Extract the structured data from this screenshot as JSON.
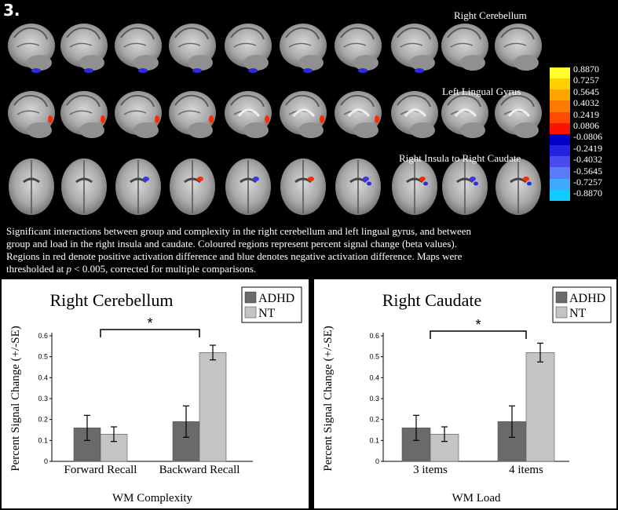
{
  "figure_label": "3.",
  "brain_rows": [
    {
      "label": "Right Cerebellum",
      "view": "sagittal",
      "blob": "blue"
    },
    {
      "label": "Left Lingual Gyrus",
      "view": "sagittal",
      "blob": "red"
    },
    {
      "label": "Right Insula to Right Caudate",
      "view": "axial",
      "blob": "red-blue"
    }
  ],
  "colorbar": {
    "labels": [
      "0.8870",
      "0.7257",
      "0.5645",
      "0.4032",
      "0.2419",
      "0.0806",
      "-0.0806",
      "-0.2419",
      "-0.4032",
      "-0.5645",
      "-0.7257",
      "-0.8870"
    ],
    "colors": [
      "#ffff30",
      "#ffd200",
      "#ffa500",
      "#ff7a00",
      "#ff4a00",
      "#ff1100",
      "#0000c8",
      "#2323e0",
      "#4a4aee",
      "#5a7cf8",
      "#40aaff",
      "#10ccff"
    ]
  },
  "caption": {
    "lines": [
      "Significant interactions between group and complexity in the right cerebellum and left lingual gyrus, and between",
      "group and load in the right insula and caudate. Coloured regions represent percent signal change (beta values).",
      "Regions in red denote positive activation difference and blue denotes negative activation difference. Maps were"
    ],
    "last_pre": "thresholded at ",
    "last_italic": "p",
    "last_post": " < 0.005, corrected for multiple comparisons."
  },
  "chart_data": [
    {
      "type": "bar",
      "title": "Right Cerebellum",
      "xlabel": "WM Complexity",
      "ylabel": "Percent Signal Change (+/-SE)",
      "categories": [
        "Forward Recall",
        "Backward Recall"
      ],
      "series": [
        {
          "name": "ADHD",
          "values": [
            0.16,
            0.19
          ],
          "se": [
            0.06,
            0.075
          ],
          "color": "#6a6a6a"
        },
        {
          "name": "NT",
          "values": [
            0.13,
            0.52
          ],
          "se": [
            0.035,
            0.035
          ],
          "color": "#c4c4c4"
        }
      ],
      "ylim": [
        0,
        0.6
      ],
      "yticks": [
        "0",
        "0.1",
        "0.2",
        "0.3",
        "0.4",
        "0.5",
        "0.6"
      ],
      "significance": "*",
      "legend": "top-right"
    },
    {
      "type": "bar",
      "title": "Right Caudate",
      "xlabel": "WM Load",
      "ylabel": "Percent Signal Change (+/-SE)",
      "categories": [
        "3 items",
        "4 items"
      ],
      "series": [
        {
          "name": "ADHD",
          "values": [
            0.16,
            0.19
          ],
          "se": [
            0.06,
            0.075
          ],
          "color": "#6a6a6a"
        },
        {
          "name": "NT",
          "values": [
            0.13,
            0.52
          ],
          "se": [
            0.035,
            0.045
          ],
          "color": "#c4c4c4"
        }
      ],
      "ylim": [
        0,
        0.6
      ],
      "yticks": [
        "0",
        "0.1",
        "0.2",
        "0.3",
        "0.4",
        "0.5",
        "0.6"
      ],
      "significance": "*",
      "legend": "top-right"
    }
  ]
}
